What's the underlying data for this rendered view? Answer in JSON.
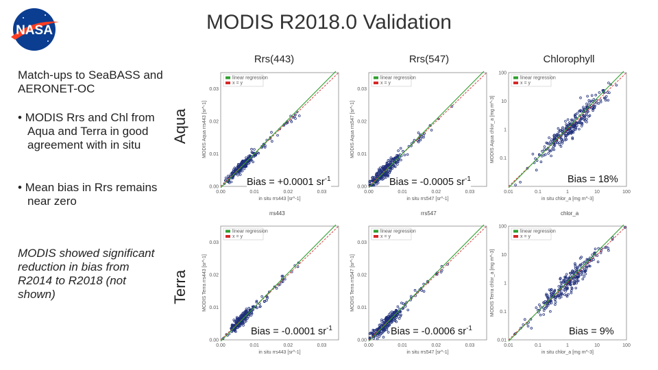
{
  "header": {
    "title": "MODIS R2018.0 Validation",
    "logo_text": "NASA",
    "colors": {
      "logo_blue": "#0b3d91",
      "logo_red": "#fc3d21"
    }
  },
  "columns": [
    "Rrs(443)",
    "Rrs(547)",
    "Chlorophyll"
  ],
  "rows": [
    "Aqua",
    "Terra"
  ],
  "sidebar": {
    "heading": "Match-ups to SeaBASS and AERONET-OC",
    "bullet1": "• MODIS Rrs and Chl from Aqua and Terra in good agreement with in situ",
    "bullet2": "• Mean bias in Rrs remains near zero",
    "note": "MODIS showed significant reduction in bias from R2014 to R2018 (not shown)"
  },
  "chart_data": [
    {
      "id": "aqua-rrs443",
      "type": "scatter",
      "row": "Aqua",
      "column": "Rrs(443)",
      "legend": [
        "linear regression",
        "x = y"
      ],
      "xlabel": "in situ rrs443 [sr^-1]",
      "ylabel": "MODIS Aqua rrs443 [sr^-1]",
      "xlim": [
        0.0,
        0.035
      ],
      "ylim": [
        0.0,
        0.035
      ],
      "xticks": [
        "0.00",
        "0.01",
        "0.02",
        "0.03"
      ],
      "yticks": [
        "0.00",
        "0.01",
        "0.02",
        "0.03"
      ],
      "bias_prefix": "Bias = +0.0001 sr",
      "bias_exp": "-1",
      "below_label": "rrs443",
      "scale": "linear",
      "center": [
        0.006,
        0.006
      ],
      "spread": 0.003,
      "tail": 0.03
    },
    {
      "id": "aqua-rrs547",
      "type": "scatter",
      "row": "Aqua",
      "column": "Rrs(547)",
      "legend": [
        "linear regression",
        "x = y"
      ],
      "xlabel": "in situ rrs547 [sr^-1]",
      "ylabel": "MODIS Aqua rrs547 [sr^-1]",
      "xlim": [
        0.0,
        0.035
      ],
      "ylim": [
        0.0,
        0.035
      ],
      "xticks": [
        "0.00",
        "0.01",
        "0.02",
        "0.03"
      ],
      "yticks": [
        "0.00",
        "0.01",
        "0.02",
        "0.03"
      ],
      "bias_prefix": "Bias = -0.0005 sr",
      "bias_exp": "-1",
      "below_label": "rrs547",
      "scale": "linear",
      "center": [
        0.005,
        0.005
      ],
      "spread": 0.004,
      "tail": 0.03
    },
    {
      "id": "aqua-chl",
      "type": "scatter",
      "row": "Aqua",
      "column": "Chlorophyll",
      "legend": [
        "linear regression",
        "x = y"
      ],
      "xlabel": "in situ chlor_a [mg m^-3]",
      "ylabel": "MODIS Aqua chlor_a [mg m^-3]",
      "xlim": [
        0.01,
        100
      ],
      "ylim": [
        0.01,
        100
      ],
      "xticks": [
        "0.01",
        "0.1",
        "1",
        "10",
        "100"
      ],
      "yticks": [
        "0.1",
        "1",
        "10",
        "100"
      ],
      "bias_prefix": "Bias = 18%",
      "bias_exp": "",
      "below_label": "chlor_a",
      "scale": "log",
      "center": [
        1.0,
        1.0
      ],
      "spread": 0.5,
      "tail": 30
    },
    {
      "id": "terra-rrs443",
      "type": "scatter",
      "row": "Terra",
      "column": "Rrs(443)",
      "legend": [
        "linear regression",
        "x = y"
      ],
      "xlabel": "in situ rrs443 [sr^-1]",
      "ylabel": "MODIS Terra rrs443 [sr^-1]",
      "xlim": [
        0.0,
        0.035
      ],
      "ylim": [
        0.0,
        0.035
      ],
      "xticks": [
        "0.00",
        "0.01",
        "0.02",
        "0.03"
      ],
      "yticks": [
        "0.00",
        "0.01",
        "0.02",
        "0.03"
      ],
      "bias_prefix": "Bias = -0.0001 sr",
      "bias_exp": "-1",
      "below_label": "",
      "scale": "linear",
      "center": [
        0.006,
        0.006
      ],
      "spread": 0.003,
      "tail": 0.03
    },
    {
      "id": "terra-rrs547",
      "type": "scatter",
      "row": "Terra",
      "column": "Rrs(547)",
      "legend": [
        "linear regression",
        "x = y"
      ],
      "xlabel": "in situ rrs547 [sr^-1]",
      "ylabel": "MODIS Terra rrs547 [sr^-1]",
      "xlim": [
        0.0,
        0.035
      ],
      "ylim": [
        0.0,
        0.035
      ],
      "xticks": [
        "0.00",
        "0.01",
        "0.02",
        "0.03"
      ],
      "yticks": [
        "0.00",
        "0.01",
        "0.02",
        "0.03"
      ],
      "bias_prefix": "Bias = -0.0006 sr",
      "bias_exp": "-1",
      "below_label": "",
      "scale": "linear",
      "center": [
        0.005,
        0.005
      ],
      "spread": 0.004,
      "tail": 0.03
    },
    {
      "id": "terra-chl",
      "type": "scatter",
      "row": "Terra",
      "column": "Chlorophyll",
      "legend": [
        "linear regression",
        "x = y"
      ],
      "xlabel": "in situ chlor_a [mg m^-3]",
      "ylabel": "MODIS Terra chlor_a [mg m^-3]",
      "xlim": [
        0.01,
        100
      ],
      "ylim": [
        0.01,
        100
      ],
      "xticks": [
        "0.01",
        "0.1",
        "1",
        "10",
        "100"
      ],
      "yticks": [
        "0.01",
        "0.1",
        "1",
        "10",
        "100"
      ],
      "bias_prefix": "Bias = 9%",
      "bias_exp": "",
      "below_label": "",
      "scale": "log",
      "center": [
        1.0,
        1.0
      ],
      "spread": 0.5,
      "tail": 30
    }
  ],
  "colors": {
    "points": "#1f2f7a",
    "regression": "#2e9e2e",
    "one_to_one": "#d62828"
  }
}
